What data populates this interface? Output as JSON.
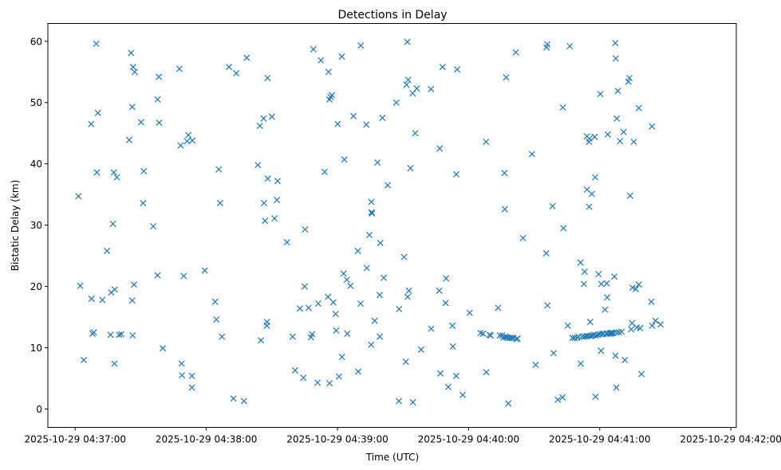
{
  "chart_data": {
    "type": "scatter",
    "title": "Detections in Delay",
    "xlabel": "Time (UTC)",
    "ylabel": "Bistatic Delay (km)",
    "marker": "x",
    "color": "#1f77b4",
    "grid": false,
    "x_unit": "seconds after 2025-10-29 04:37:00 UTC",
    "xlim": [
      -12.5,
      302.5
    ],
    "ylim": [
      -3.0,
      62.9
    ],
    "x_ticks": [
      {
        "value": 0,
        "label": "2025-10-29 04:37:00"
      },
      {
        "value": 60,
        "label": "2025-10-29 04:38:00"
      },
      {
        "value": 120,
        "label": "2025-10-29 04:39:00"
      },
      {
        "value": 180,
        "label": "2025-10-29 04:40:00"
      },
      {
        "value": 240,
        "label": "2025-10-29 04:41:00"
      },
      {
        "value": 300,
        "label": "2025-10-29 04:42:00"
      }
    ],
    "y_ticks": [
      {
        "value": 0,
        "label": "0"
      },
      {
        "value": 10,
        "label": "10"
      },
      {
        "value": 20,
        "label": "20"
      },
      {
        "value": 30,
        "label": "30"
      },
      {
        "value": 40,
        "label": "40"
      },
      {
        "value": 50,
        "label": "50"
      },
      {
        "value": 60,
        "label": "60"
      }
    ],
    "points": [
      [
        1.5,
        34.7
      ],
      [
        2.3,
        20.1
      ],
      [
        3.9,
        8.0
      ],
      [
        7.3,
        46.5
      ],
      [
        7.5,
        18.0
      ],
      [
        7.9,
        12.3
      ],
      [
        8.5,
        12.5
      ],
      [
        9.6,
        59.6
      ],
      [
        9.9,
        38.6
      ],
      [
        10.4,
        48.3
      ],
      [
        12.4,
        17.8
      ],
      [
        14.6,
        25.8
      ],
      [
        16.2,
        12.1
      ],
      [
        16.5,
        19.0
      ],
      [
        17.3,
        30.2
      ],
      [
        17.7,
        38.6
      ],
      [
        18.0,
        7.4
      ],
      [
        18.1,
        19.5
      ],
      [
        19.1,
        37.8
      ],
      [
        20.1,
        12.1
      ],
      [
        21.1,
        12.2
      ],
      [
        24.7,
        43.9
      ],
      [
        25.6,
        58.1
      ],
      [
        26.1,
        49.3
      ],
      [
        26.1,
        17.7
      ],
      [
        26.3,
        12.0
      ],
      [
        26.5,
        55.8
      ],
      [
        26.9,
        20.3
      ],
      [
        27.2,
        55.0
      ],
      [
        30.2,
        46.8
      ],
      [
        31.1,
        33.6
      ],
      [
        31.4,
        38.8
      ],
      [
        35.7,
        29.8
      ],
      [
        37.7,
        50.5
      ],
      [
        37.7,
        21.8
      ],
      [
        38.3,
        54.2
      ],
      [
        38.4,
        46.7
      ],
      [
        40.1,
        9.9
      ],
      [
        47.7,
        55.5
      ],
      [
        48.3,
        43.0
      ],
      [
        48.7,
        7.4
      ],
      [
        48.9,
        5.5
      ],
      [
        49.7,
        21.7
      ],
      [
        51.2,
        43.7
      ],
      [
        51.8,
        44.7
      ],
      [
        53.4,
        5.4
      ],
      [
        53.4,
        3.5
      ],
      [
        53.6,
        43.8
      ],
      [
        59.3,
        22.6
      ],
      [
        64.0,
        17.5
      ],
      [
        64.6,
        14.6
      ],
      [
        65.7,
        39.1
      ],
      [
        66.3,
        33.6
      ],
      [
        67.2,
        11.8
      ],
      [
        70.4,
        55.8
      ],
      [
        72.4,
        1.7
      ],
      [
        73.7,
        54.8
      ],
      [
        77.2,
        1.3
      ],
      [
        78.5,
        57.3
      ],
      [
        83.6,
        39.8
      ],
      [
        84.5,
        46.2
      ],
      [
        85.0,
        11.2
      ],
      [
        86.2,
        47.4
      ],
      [
        86.4,
        33.6
      ],
      [
        86.9,
        30.7
      ],
      [
        87.7,
        13.6
      ],
      [
        87.8,
        14.2
      ],
      [
        88.0,
        54.0
      ],
      [
        88.1,
        37.6
      ],
      [
        90.0,
        47.7
      ],
      [
        91.2,
        31.1
      ],
      [
        92.3,
        34.1
      ],
      [
        92.6,
        37.2
      ],
      [
        96.9,
        27.2
      ],
      [
        99.5,
        11.8
      ],
      [
        100.6,
        6.3
      ],
      [
        102.8,
        16.4
      ],
      [
        104.4,
        5.1
      ],
      [
        105.0,
        20.0
      ],
      [
        105.2,
        29.3
      ],
      [
        106.8,
        16.5
      ],
      [
        107.9,
        11.7
      ],
      [
        108.4,
        12.2
      ],
      [
        109.0,
        58.7
      ],
      [
        110.9,
        4.3
      ],
      [
        111.2,
        17.2
      ],
      [
        112.4,
        56.9
      ],
      [
        114.1,
        38.7
      ],
      [
        115.7,
        18.3
      ],
      [
        115.9,
        55.0
      ],
      [
        116.3,
        50.5
      ],
      [
        116.4,
        4.2
      ],
      [
        116.9,
        50.9
      ],
      [
        117.5,
        51.2
      ],
      [
        118.1,
        17.4
      ],
      [
        119.2,
        15.5
      ],
      [
        119.4,
        12.8
      ],
      [
        120.1,
        46.5
      ],
      [
        120.7,
        5.3
      ],
      [
        122.0,
        57.5
      ],
      [
        122.1,
        8.5
      ],
      [
        122.8,
        22.1
      ],
      [
        123.2,
        40.7
      ],
      [
        124.3,
        21.1
      ],
      [
        124.5,
        12.3
      ],
      [
        126.0,
        20.1
      ],
      [
        127.3,
        47.8
      ],
      [
        129.3,
        25.8
      ],
      [
        129.5,
        6.1
      ],
      [
        130.6,
        17.2
      ],
      [
        130.7,
        59.3
      ],
      [
        133.2,
        46.4
      ],
      [
        133.4,
        23.0
      ],
      [
        134.6,
        28.4
      ],
      [
        135.4,
        10.5
      ],
      [
        135.5,
        33.8
      ],
      [
        135.6,
        32.1
      ],
      [
        135.8,
        31.9
      ],
      [
        137.0,
        14.4
      ],
      [
        138.3,
        40.2
      ],
      [
        139.3,
        18.6
      ],
      [
        139.4,
        11.8
      ],
      [
        139.6,
        27.1
      ],
      [
        140.6,
        47.5
      ],
      [
        141.2,
        21.4
      ],
      [
        143.0,
        36.5
      ],
      [
        146.9,
        50.0
      ],
      [
        148.1,
        1.3
      ],
      [
        148.2,
        16.3
      ],
      [
        150.5,
        24.8
      ],
      [
        151.3,
        7.7
      ],
      [
        151.6,
        52.9
      ],
      [
        152.0,
        59.9
      ],
      [
        152.1,
        18.3
      ],
      [
        152.4,
        53.7
      ],
      [
        152.7,
        19.3
      ],
      [
        153.4,
        39.3
      ],
      [
        154.4,
        51.5
      ],
      [
        154.5,
        1.1
      ],
      [
        155.6,
        45.0
      ],
      [
        156.3,
        52.3
      ],
      [
        158.3,
        9.7
      ],
      [
        162.8,
        52.2
      ],
      [
        162.9,
        13.1
      ],
      [
        166.6,
        19.3
      ],
      [
        166.8,
        42.5
      ],
      [
        167.1,
        5.8
      ],
      [
        168.1,
        55.8
      ],
      [
        169.5,
        17.3
      ],
      [
        169.7,
        21.3
      ],
      [
        170.7,
        3.6
      ],
      [
        172.6,
        13.6
      ],
      [
        172.8,
        10.2
      ],
      [
        174.3,
        5.4
      ],
      [
        174.4,
        38.3
      ],
      [
        174.8,
        55.4
      ],
      [
        177.3,
        2.3
      ],
      [
        180.5,
        15.7
      ],
      [
        185.5,
        12.4
      ],
      [
        186.6,
        12.3
      ],
      [
        188.0,
        43.6
      ],
      [
        188.1,
        6.0
      ],
      [
        189.6,
        12.1
      ],
      [
        190.1,
        12.0
      ],
      [
        193.5,
        16.5
      ],
      [
        194.3,
        12.0
      ],
      [
        195.4,
        12.0
      ],
      [
        196.0,
        11.7
      ],
      [
        196.4,
        38.5
      ],
      [
        196.6,
        32.6
      ],
      [
        196.9,
        11.8
      ],
      [
        197.2,
        54.1
      ],
      [
        197.4,
        11.7
      ],
      [
        198.0,
        11.6
      ],
      [
        198.2,
        0.9
      ],
      [
        198.9,
        11.6
      ],
      [
        199.7,
        11.6
      ],
      [
        200.5,
        11.6
      ],
      [
        201.6,
        58.2
      ],
      [
        201.9,
        11.4
      ],
      [
        202.4,
        11.5
      ],
      [
        204.9,
        27.9
      ],
      [
        209.0,
        41.6
      ],
      [
        210.7,
        7.2
      ],
      [
        215.5,
        25.4
      ],
      [
        215.7,
        59.0
      ],
      [
        216.0,
        59.5
      ],
      [
        216.1,
        16.9
      ],
      [
        218.4,
        33.1
      ],
      [
        218.9,
        9.1
      ],
      [
        220.8,
        1.5
      ],
      [
        223.0,
        1.9
      ],
      [
        223.1,
        49.2
      ],
      [
        223.4,
        29.5
      ],
      [
        225.4,
        13.6
      ],
      [
        226.3,
        59.2
      ],
      [
        227.5,
        11.6
      ],
      [
        228.5,
        11.6
      ],
      [
        229.7,
        11.6
      ],
      [
        230.3,
        11.8
      ],
      [
        231.2,
        23.9
      ],
      [
        231.3,
        7.4
      ],
      [
        231.9,
        11.8
      ],
      [
        232.7,
        20.4
      ],
      [
        233.0,
        11.8
      ],
      [
        233.1,
        22.4
      ],
      [
        233.9,
        11.9
      ],
      [
        234.1,
        44.5
      ],
      [
        234.2,
        35.8
      ],
      [
        234.6,
        11.9
      ],
      [
        235.1,
        43.6
      ],
      [
        235.2,
        33.0
      ],
      [
        235.3,
        44.1
      ],
      [
        235.6,
        14.2
      ],
      [
        235.7,
        11.9
      ],
      [
        236.0,
        11.9
      ],
      [
        236.4,
        35.1
      ],
      [
        236.7,
        12.0
      ],
      [
        237.3,
        12.1
      ],
      [
        237.7,
        44.4
      ],
      [
        237.9,
        37.8
      ],
      [
        238.1,
        2.0
      ],
      [
        238.3,
        12.0
      ],
      [
        239.2,
        12.1
      ],
      [
        239.5,
        22.0
      ],
      [
        240.1,
        12.2
      ],
      [
        240.3,
        51.4
      ],
      [
        240.6,
        9.5
      ],
      [
        240.7,
        20.4
      ],
      [
        241.1,
        12.2
      ],
      [
        241.6,
        12.3
      ],
      [
        242.4,
        16.2
      ],
      [
        242.9,
        12.3
      ],
      [
        243.2,
        20.5
      ],
      [
        243.4,
        18.2
      ],
      [
        243.7,
        44.8
      ],
      [
        243.7,
        12.3
      ],
      [
        244.6,
        12.3
      ],
      [
        244.9,
        12.3
      ],
      [
        245.2,
        12.4
      ],
      [
        245.6,
        12.4
      ],
      [
        246.2,
        12.4
      ],
      [
        246.7,
        21.6
      ],
      [
        247.1,
        59.7
      ],
      [
        247.2,
        8.7
      ],
      [
        247.3,
        57.2
      ],
      [
        247.5,
        12.5
      ],
      [
        247.6,
        3.5
      ],
      [
        247.8,
        47.4
      ],
      [
        248.3,
        51.9
      ],
      [
        248.7,
        12.5
      ],
      [
        249.3,
        43.7
      ],
      [
        250.0,
        12.6
      ],
      [
        250.9,
        45.2
      ],
      [
        251.5,
        8.0
      ],
      [
        253.1,
        53.4
      ],
      [
        253.6,
        54.0
      ],
      [
        253.9,
        34.8
      ],
      [
        254.4,
        13.0
      ],
      [
        254.8,
        14.0
      ],
      [
        255.0,
        19.8
      ],
      [
        255.6,
        43.6
      ],
      [
        256.5,
        19.6
      ],
      [
        257.0,
        13.3
      ],
      [
        257.9,
        20.3
      ],
      [
        257.9,
        49.1
      ],
      [
        258.5,
        13.2
      ],
      [
        259.1,
        5.7
      ],
      [
        263.6,
        17.5
      ],
      [
        263.9,
        46.1
      ],
      [
        264.0,
        13.6
      ],
      [
        265.5,
        14.4
      ],
      [
        267.8,
        13.8
      ]
    ]
  }
}
